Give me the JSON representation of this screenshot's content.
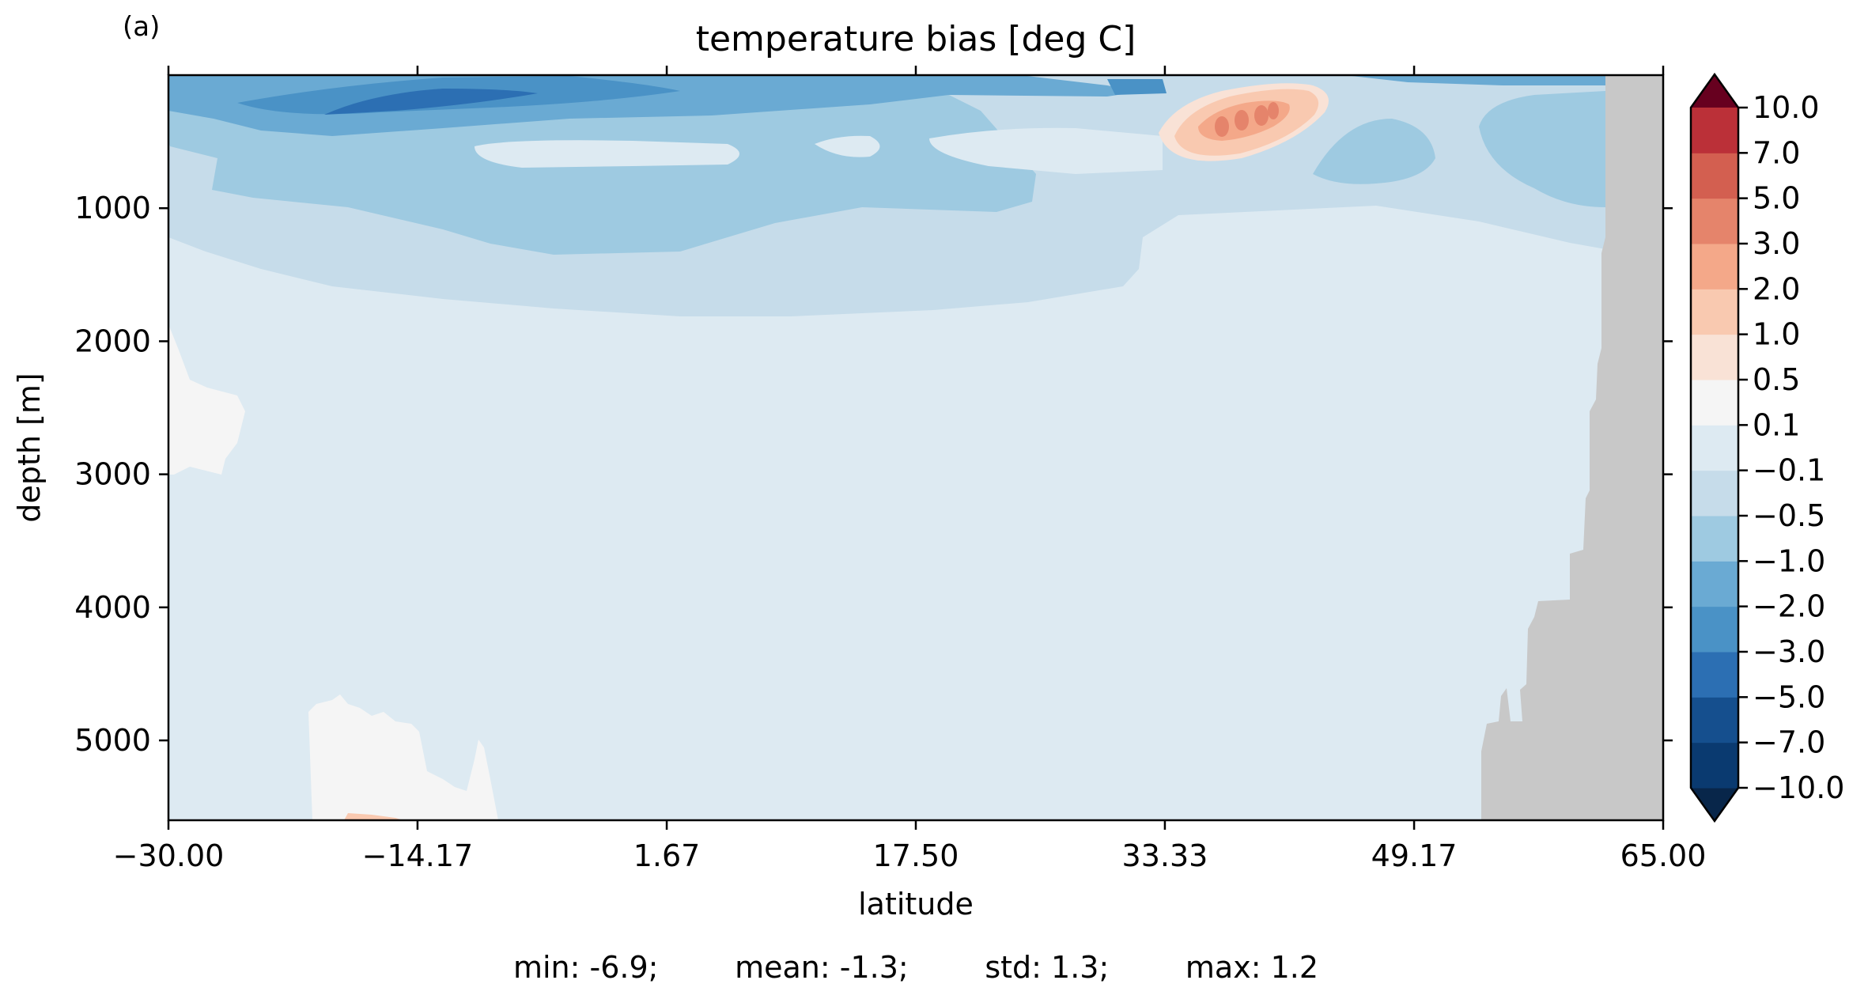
{
  "chart_data": {
    "type": "heatmap",
    "panel_label": "(a)",
    "title": "temperature bias [deg C]",
    "xlabel": "latitude",
    "ylabel": "depth [m]",
    "xlim": [
      -30.0,
      65.0
    ],
    "ylim_depth": [
      0,
      5600
    ],
    "y_inverted": true,
    "x_ticks": [
      -30.0,
      -14.17,
      1.67,
      17.5,
      33.33,
      49.17,
      65.0
    ],
    "x_tick_labels": [
      "−30.00",
      "−14.17",
      "1.67",
      "17.50",
      "33.33",
      "49.17",
      "65.00"
    ],
    "y_ticks": [
      1000,
      2000,
      3000,
      4000,
      5000
    ],
    "y_tick_labels": [
      "1000",
      "2000",
      "3000",
      "4000",
      "5000"
    ],
    "colormap": "RdBu_r",
    "colorbar_levels": [
      -10.0,
      -7.0,
      -5.0,
      -3.0,
      -2.0,
      -1.0,
      -0.5,
      -0.1,
      0.1,
      0.5,
      1.0,
      2.0,
      3.0,
      5.0,
      7.0,
      10.0
    ],
    "colorbar_tick_labels": [
      "−10.0",
      "−7.0",
      "−5.0",
      "−3.0",
      "−2.0",
      "−1.0",
      "−0.5",
      "−0.1",
      "0.1",
      "0.5",
      "1.0",
      "2.0",
      "3.0",
      "5.0",
      "7.0",
      "10.0"
    ],
    "colorbar_colors": [
      "#0a3a70",
      "#154f8e",
      "#2c6fb3",
      "#4a92c6",
      "#6aaad3",
      "#9ecae1",
      "#c6dcea",
      "#ddeaf2",
      "#f5f5f5",
      "#f9e2d6",
      "#f9c9b0",
      "#f4a889",
      "#e5846b",
      "#d35f50",
      "#bb3038",
      "#9a1228"
    ],
    "colorbar_extend_low_color": "#08264a",
    "colorbar_extend_high_color": "#67001f",
    "land_mask_color": "#c8c8c8",
    "stats": "min: -6.9;        mean: -1.3;        std: 1.3;        max: 1.2"
  }
}
